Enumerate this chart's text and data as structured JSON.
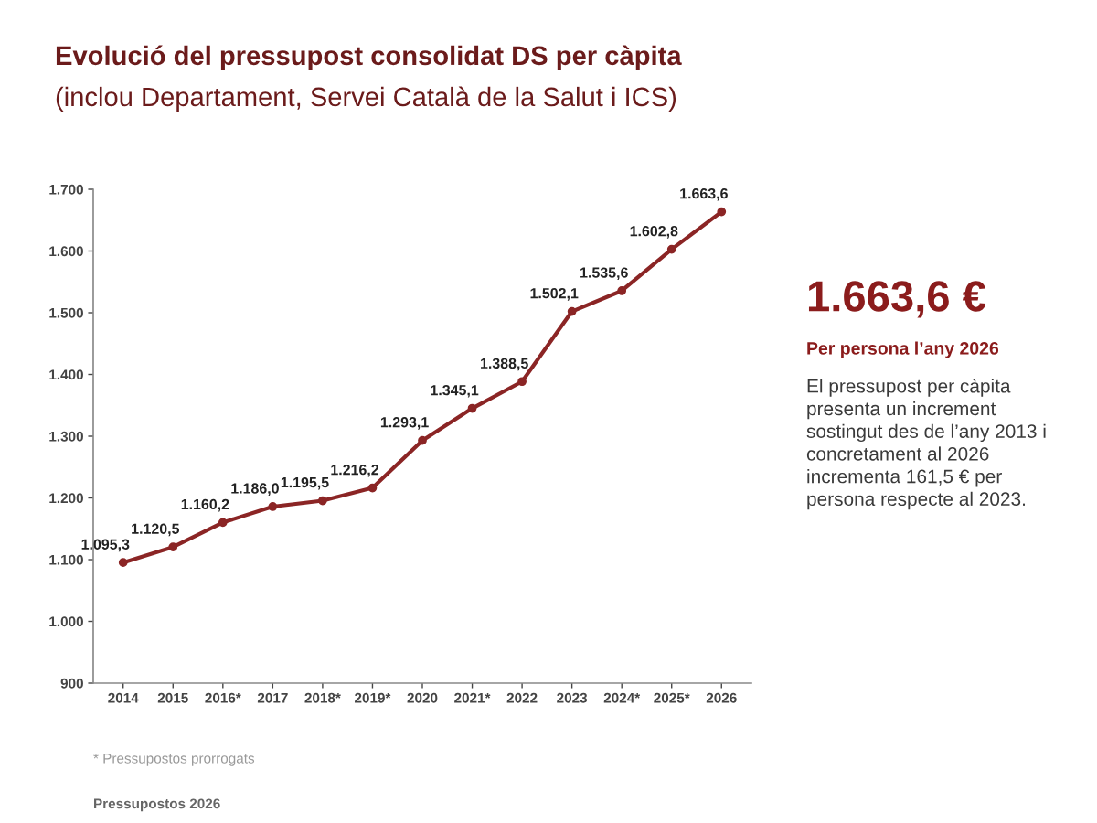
{
  "chart_data": {
    "type": "line",
    "title": "Evolució del pressupost consolidat DS per càpita",
    "subtitle": "(inclou Departament, Servei Català de la Salut i ICS)",
    "categories": [
      "2014",
      "2015",
      "2016*",
      "2017",
      "2018*",
      "2019*",
      "2020",
      "2021*",
      "2022",
      "2023",
      "2024*",
      "2025*",
      "2026"
    ],
    "values": [
      1095.3,
      1120.5,
      1160.2,
      1186.0,
      1195.5,
      1216.2,
      1293.1,
      1345.1,
      1388.5,
      1502.1,
      1535.6,
      1602.8,
      1663.6
    ],
    "value_labels": [
      "1.095,3",
      "1.120,5",
      "1.160,2",
      "1.186,0",
      "1.195,5",
      "1.216,2",
      "1.293,1",
      "1.345,1",
      "1.388,5",
      "1.502,1",
      "1.535,6",
      "1.602,8",
      "1.663,6"
    ],
    "color": "#8b2525",
    "marker": "circle",
    "line_style": "solid",
    "ylim": [
      900,
      1700
    ],
    "yticks": [
      900,
      {
        "value": 1000,
        "label": "1.000"
      },
      {
        "value": 1100,
        "label": "1.100"
      },
      {
        "value": 1200,
        "label": "1.200"
      },
      {
        "value": 1300,
        "label": "1.300"
      },
      {
        "value": 1400,
        "label": "1.400"
      },
      {
        "value": 1500,
        "label": "1.500"
      },
      {
        "value": 1600,
        "label": "1.600"
      },
      {
        "value": 1700,
        "label": "1.700"
      }
    ],
    "annotations": [
      "1.663,6 €",
      "Per persona l’any 2026",
      "El pressupost per càpita presenta un increment sostingut des de l’any 2013 i concretament al 2026 incrementa 161,5 € per persona respecte al 2023.",
      "* Pressupostos prorrogats",
      "Pressupostos 2026"
    ]
  }
}
